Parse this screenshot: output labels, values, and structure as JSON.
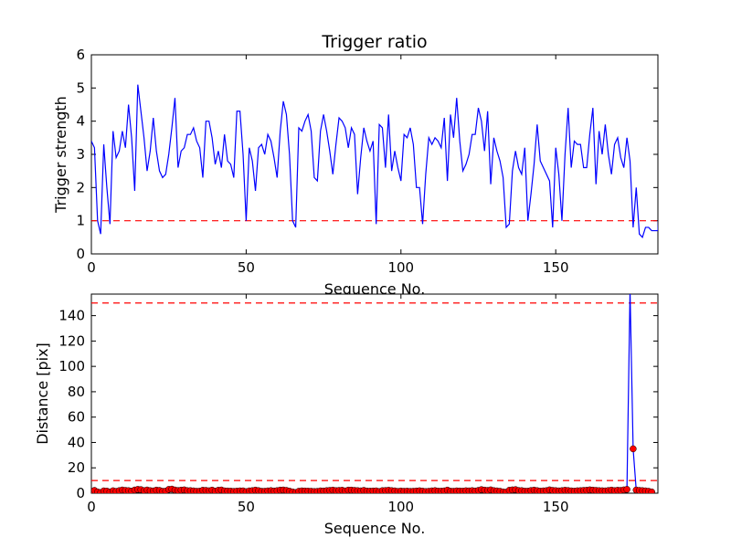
{
  "chart_data": [
    {
      "type": "line",
      "title": "Trigger ratio",
      "xlabel": "Sequence No.",
      "ylabel": "Trigger strength",
      "xlim": [
        0,
        183
      ],
      "ylim": [
        0,
        6
      ],
      "xticks": [
        0,
        50,
        100,
        150
      ],
      "yticks": [
        0,
        1,
        2,
        3,
        4,
        5,
        6
      ],
      "grid": false,
      "line_color": "#0000ff",
      "threshold": {
        "value": 1.0,
        "color": "#ff0000",
        "style": "dashed"
      },
      "series": [
        {
          "values": [
            3.4,
            3.2,
            1.0,
            0.6,
            3.3,
            2.0,
            0.9,
            3.7,
            2.9,
            3.1,
            3.7,
            3.2,
            4.5,
            3.5,
            1.9,
            5.1,
            4.3,
            3.5,
            2.5,
            3.1,
            4.1,
            3.1,
            2.5,
            2.3,
            2.4,
            3.0,
            3.8,
            4.7,
            2.6,
            3.1,
            3.2,
            3.6,
            3.6,
            3.8,
            3.4,
            3.2,
            2.3,
            4.0,
            4.0,
            3.5,
            2.7,
            3.1,
            2.6,
            3.6,
            2.8,
            2.7,
            2.3,
            4.3,
            4.3,
            3.0,
            1.0,
            3.2,
            2.8,
            1.9,
            3.2,
            3.3,
            3.0,
            3.6,
            3.4,
            2.9,
            2.3,
            3.7,
            4.6,
            4.2,
            3.0,
            1.0,
            0.8,
            3.8,
            3.7,
            4.0,
            4.2,
            3.7,
            2.3,
            2.2,
            3.7,
            4.2,
            3.7,
            3.1,
            2.4,
            3.3,
            4.1,
            4.0,
            3.8,
            3.2,
            3.8,
            3.6,
            1.8,
            2.9,
            3.8,
            3.4,
            3.1,
            3.4,
            0.9,
            3.9,
            3.8,
            2.6,
            4.2,
            2.5,
            3.1,
            2.6,
            2.2,
            3.6,
            3.5,
            3.8,
            3.3,
            2.0,
            2.0,
            0.9,
            2.4,
            3.5,
            3.3,
            3.5,
            3.4,
            3.2,
            4.1,
            2.2,
            4.2,
            3.5,
            4.7,
            3.4,
            2.5,
            2.7,
            3.0,
            3.6,
            3.6,
            4.4,
            4.0,
            3.1,
            4.3,
            2.1,
            3.5,
            3.1,
            2.8,
            2.3,
            0.8,
            0.9,
            2.5,
            3.1,
            2.6,
            2.4,
            3.2,
            1.0,
            1.8,
            2.7,
            3.9,
            2.8,
            2.6,
            2.4,
            2.2,
            0.8,
            3.2,
            2.4,
            1.0,
            3.0,
            4.4,
            2.6,
            3.4,
            3.3,
            3.3,
            2.6,
            2.6,
            3.6,
            4.4,
            2.1,
            3.7,
            3.0,
            3.9,
            3.0,
            2.4,
            3.3,
            3.5,
            2.9,
            2.6,
            3.5,
            2.8,
            0.8,
            2.0,
            0.6,
            0.5,
            0.8,
            0.8,
            0.7,
            0.7,
            0.7,
            2.7
          ]
        }
      ]
    },
    {
      "type": "line",
      "title": "",
      "xlabel": "Sequence No.",
      "ylabel": "Distance [pix]",
      "xlim": [
        0,
        183
      ],
      "ylim": [
        0,
        157
      ],
      "xticks": [
        0,
        50,
        100,
        150
      ],
      "yticks": [
        0,
        20,
        40,
        60,
        80,
        100,
        120,
        140
      ],
      "grid": false,
      "line_color": "#0000ff",
      "marker_color": "#ff0000",
      "thresholds": [
        {
          "value": 150,
          "color": "#ff0000",
          "style": "dashed"
        },
        {
          "value": 10,
          "color": "#ff0000",
          "style": "dashed"
        }
      ],
      "series": [
        {
          "values": [
            1.5,
            2.2,
            1.0,
            0.5,
            1.8,
            1.6,
            1.0,
            1.9,
            1.4,
            2.0,
            2.5,
            2.2,
            2.0,
            1.6,
            2.5,
            3.0,
            2.8,
            2.0,
            2.5,
            2.0,
            1.8,
            2.4,
            2.2,
            1.5,
            1.6,
            3.0,
            3.2,
            2.5,
            2.1,
            2.4,
            2.6,
            2.0,
            2.0,
            1.8,
            1.5,
            1.6,
            2.3,
            2.2,
            1.9,
            2.4,
            1.6,
            2.3,
            2.5,
            1.8,
            1.7,
            1.6,
            1.4,
            1.6,
            1.8,
            1.8,
            1.2,
            1.8,
            2.0,
            2.4,
            2.0,
            1.5,
            1.5,
            1.8,
            2.0,
            1.7,
            2.0,
            2.4,
            2.5,
            2.2,
            1.6,
            1.0,
            0.5,
            1.5,
            1.8,
            1.7,
            1.6,
            1.5,
            1.3,
            1.4,
            1.8,
            1.7,
            2.0,
            2.2,
            2.4,
            2.0,
            2.2,
            2.3,
            1.8,
            2.4,
            2.4,
            2.2,
            2.0,
            1.8,
            2.2,
            1.7,
            1.6,
            1.7,
            1.8,
            1.3,
            2.0,
            2.1,
            2.3,
            2.0,
            1.8,
            1.4,
            1.7,
            1.5,
            1.6,
            1.4,
            1.5,
            1.7,
            1.9,
            1.6,
            1.3,
            1.5,
            1.8,
            2.0,
            1.6,
            1.6,
            1.8,
            2.4,
            1.6,
            1.5,
            1.8,
            1.7,
            1.6,
            1.9,
            1.8,
            2.0,
            1.7,
            2.2,
            2.8,
            2.4,
            2.2,
            2.6,
            2.0,
            1.8,
            1.5,
            1.0,
            0.8,
            2.3,
            2.6,
            2.8,
            2.1,
            2.0,
            1.6,
            1.6,
            2.1,
            2.4,
            2.0,
            1.6,
            1.8,
            2.0,
            2.6,
            2.2,
            2.0,
            1.8,
            2.0,
            2.3,
            2.1,
            1.8,
            1.6,
            1.9,
            2.0,
            2.2,
            2.3,
            2.6,
            2.4,
            2.2,
            2.0,
            1.9,
            1.8,
            2.1,
            2.4,
            2.0,
            2.3,
            2.2,
            2.6,
            3.0,
            160,
            35,
            2.5,
            2.2,
            2.0,
            1.8,
            1.5,
            1.0
          ]
        }
      ]
    }
  ]
}
